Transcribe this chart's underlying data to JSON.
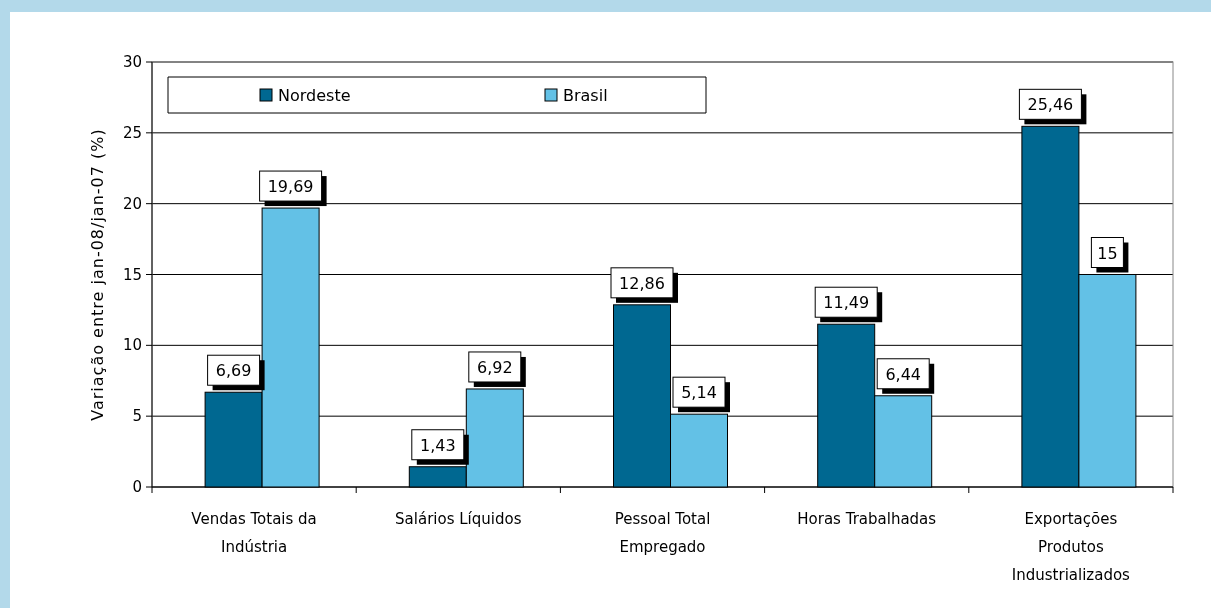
{
  "chart_data": {
    "type": "bar",
    "ylabel": "Variação entre jan-08/jan-07 (%)",
    "categories": [
      "Vendas Totais da Indústria",
      "Salários Líquidos",
      "Pessoal Total Empregado",
      "Horas Trabalhadas",
      "Exportações Produtos Industrializados"
    ],
    "series": [
      {
        "name": "Nordeste",
        "color": "#006891",
        "values": [
          6.69,
          1.43,
          12.86,
          11.49,
          25.46
        ],
        "value_labels": [
          "6,69",
          "1,43",
          "12,86",
          "11,49",
          "25,46"
        ]
      },
      {
        "name": "Brasil",
        "color": "#63c1e6",
        "values": [
          19.69,
          6.92,
          5.14,
          6.44,
          15
        ],
        "value_labels": [
          "19,69",
          "6,92",
          "5,14",
          "6,44",
          "15"
        ]
      }
    ],
    "ylim": [
      0,
      30
    ],
    "yticks": [
      0,
      5,
      10,
      15,
      20,
      25,
      30
    ],
    "grid": "y",
    "legend": "top"
  }
}
